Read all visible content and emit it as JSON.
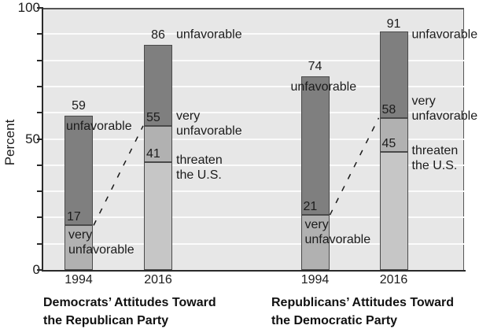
{
  "chart_data": {
    "type": "bar",
    "variant": "grouped-stacked-percentage",
    "title": "",
    "ylabel": "Percent",
    "xlabel": "",
    "ylim": [
      0,
      100
    ],
    "yticks": [
      0,
      50,
      100
    ],
    "gridline_step": 10,
    "grid": true,
    "legend_position": "none",
    "colors": {
      "unfavorable": "#7f7f7f",
      "very_unfavorable": "#b1b1b1",
      "threaten_us": "#c6c6c6",
      "plot_bg": "#e7e7e7",
      "gridline": "#fbfbfb",
      "axis": "#2a2a2a",
      "bar_border": "#4a4a4a",
      "text": "#1c1c1c"
    },
    "groups": [
      {
        "caption": [
          "Democrats’ Attitudes Toward",
          "the Republican Party"
        ],
        "bars": [
          {
            "year": "1994",
            "segments": [
              {
                "label": "very unfavorable",
                "to": 17,
                "color_key": "very_unfavorable"
              },
              {
                "label": "unfavorable",
                "to": 59,
                "color_key": "unfavorable"
              }
            ]
          },
          {
            "year": "2016",
            "segments": [
              {
                "label": "threaten the U.S.",
                "to": 41,
                "color_key": "threaten_us"
              },
              {
                "label": "very unfavorable",
                "to": 55,
                "color_key": "very_unfavorable"
              },
              {
                "label": "unfavorable",
                "to": 86,
                "color_key": "unfavorable"
              }
            ]
          }
        ],
        "dashed_line": {
          "from_bar": 0,
          "from_value": 17,
          "to_bar": 1,
          "to_value": 55
        }
      },
      {
        "caption": [
          "Republicans’ Attitudes Toward",
          "the Democratic Party"
        ],
        "bars": [
          {
            "year": "1994",
            "segments": [
              {
                "label": "very unfavorable",
                "to": 21,
                "color_key": "very_unfavorable"
              },
              {
                "label": "unfavorable",
                "to": 74,
                "color_key": "unfavorable"
              }
            ]
          },
          {
            "year": "2016",
            "segments": [
              {
                "label": "threaten the U.S.",
                "to": 45,
                "color_key": "threaten_us"
              },
              {
                "label": "very unfavorable",
                "to": 58,
                "color_key": "very_unfavorable"
              },
              {
                "label": "unfavorable",
                "to": 91,
                "color_key": "unfavorable"
              }
            ]
          }
        ],
        "dashed_line": {
          "from_bar": 0,
          "from_value": 21,
          "to_bar": 1,
          "to_value": 58
        }
      }
    ],
    "annotations": [
      {
        "text": "59",
        "bar": 0,
        "value": 59,
        "side": "above"
      },
      {
        "text": "unfavorable",
        "bar": 0,
        "value": 59,
        "side": "inside-top"
      },
      {
        "text": "17",
        "bar": 0,
        "value": 17,
        "side": "above-line"
      },
      {
        "text": "very\nunfavorable",
        "bar": 0,
        "value": 17,
        "side": "below-line"
      },
      {
        "text": "86",
        "bar": 1,
        "value": 86,
        "side": "above"
      },
      {
        "text": "unfavorable",
        "bar": 1,
        "value": 86,
        "side": "right"
      },
      {
        "text": "55",
        "bar": 1,
        "value": 55,
        "side": "above-line"
      },
      {
        "text": "very\nunfavorable",
        "bar": 1,
        "value": 55,
        "side": "right"
      },
      {
        "text": "41",
        "bar": 1,
        "value": 41,
        "side": "above-line"
      },
      {
        "text": "threaten\nthe U.S.",
        "bar": 1,
        "value": 41,
        "side": "right"
      },
      {
        "text": "74",
        "bar": 2,
        "value": 74,
        "side": "above"
      },
      {
        "text": "unfavorable",
        "bar": 2,
        "value": 74,
        "side": "inside-top"
      },
      {
        "text": "21",
        "bar": 2,
        "value": 21,
        "side": "above-line"
      },
      {
        "text": "very\nunfavorable",
        "bar": 2,
        "value": 21,
        "side": "below-line"
      },
      {
        "text": "91",
        "bar": 3,
        "value": 91,
        "side": "above"
      },
      {
        "text": "unfavorable",
        "bar": 3,
        "value": 91,
        "side": "right"
      },
      {
        "text": "58",
        "bar": 3,
        "value": 58,
        "side": "above-line"
      },
      {
        "text": "very\nunfavorable",
        "bar": 3,
        "value": 58,
        "side": "right"
      },
      {
        "text": "45",
        "bar": 3,
        "value": 45,
        "side": "above-line"
      },
      {
        "text": "threaten\nthe U.S.",
        "bar": 3,
        "value": 45,
        "side": "right"
      }
    ]
  }
}
